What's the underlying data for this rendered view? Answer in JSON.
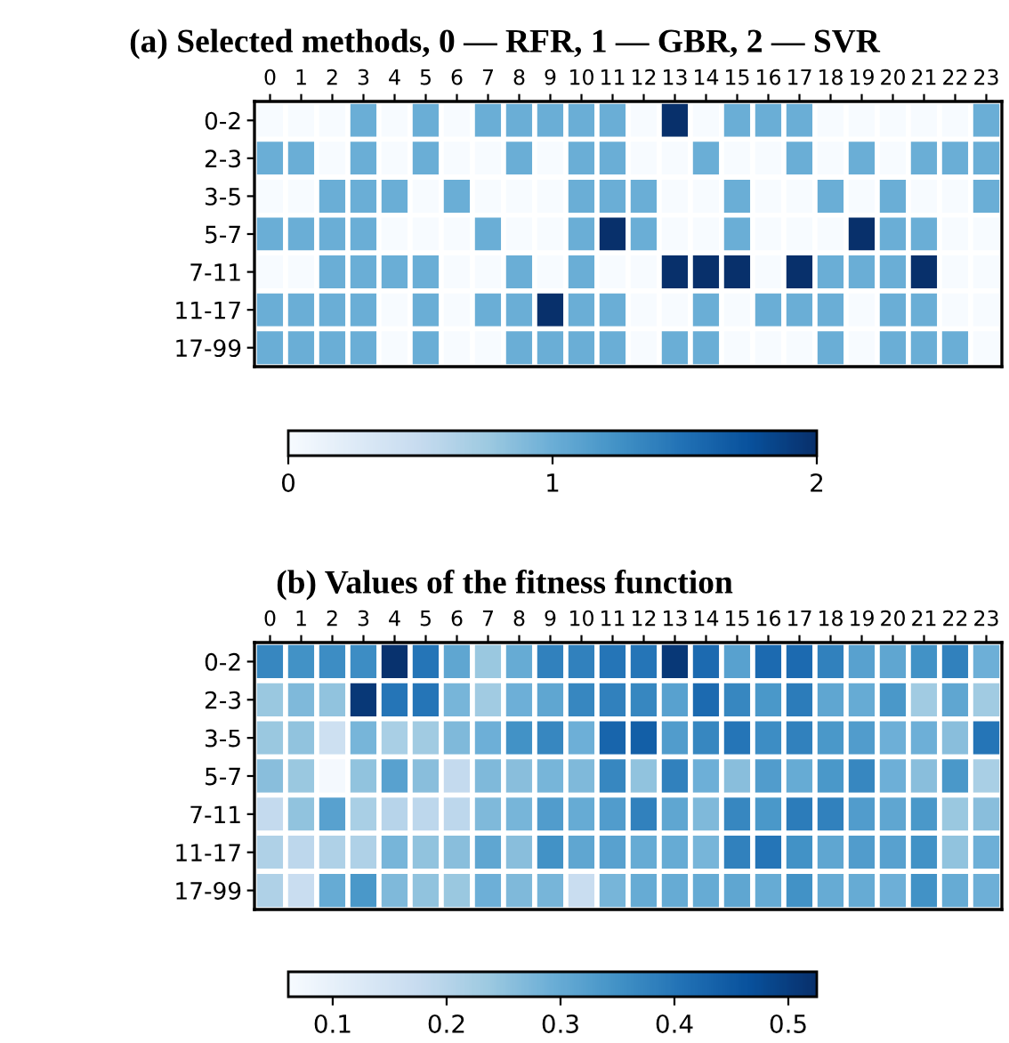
{
  "chart_data": [
    {
      "type": "heatmap",
      "title": "(a) Selected methods, 0 — RFR, 1 — GBR, 2 — SVR",
      "categories": [
        "0",
        "1",
        "2",
        "3",
        "4",
        "5",
        "6",
        "7",
        "8",
        "9",
        "10",
        "11",
        "12",
        "13",
        "14",
        "15",
        "16",
        "17",
        "18",
        "19",
        "20",
        "21",
        "22",
        "23"
      ],
      "y_categories": [
        "0-2",
        "2-3",
        "3-5",
        "5-7",
        "7-11",
        "11-17",
        "17-99"
      ],
      "cells": [
        [
          0,
          0,
          0,
          1,
          0,
          1,
          0,
          1,
          1,
          1,
          1,
          1,
          0,
          2,
          0,
          1,
          1,
          1,
          0,
          0,
          0,
          0,
          0,
          1
        ],
        [
          1,
          1,
          0,
          1,
          0,
          1,
          0,
          0,
          1,
          0,
          1,
          1,
          0,
          0,
          1,
          0,
          0,
          1,
          0,
          1,
          0,
          1,
          1,
          1
        ],
        [
          0,
          0,
          1,
          1,
          1,
          0,
          1,
          0,
          0,
          0,
          1,
          1,
          1,
          0,
          0,
          1,
          0,
          0,
          1,
          0,
          1,
          0,
          0,
          1
        ],
        [
          1,
          1,
          1,
          1,
          0,
          0,
          0,
          1,
          0,
          0,
          1,
          2,
          1,
          0,
          0,
          1,
          0,
          0,
          0,
          2,
          1,
          1,
          0,
          0
        ],
        [
          0,
          0,
          1,
          1,
          1,
          1,
          0,
          0,
          1,
          0,
          1,
          0,
          0,
          2,
          2,
          2,
          0,
          2,
          1,
          1,
          1,
          2,
          0,
          0
        ],
        [
          1,
          1,
          1,
          1,
          0,
          1,
          0,
          1,
          1,
          2,
          1,
          1,
          0,
          0,
          1,
          0,
          1,
          1,
          1,
          0,
          1,
          1,
          0,
          0
        ],
        [
          1,
          1,
          1,
          1,
          0,
          1,
          0,
          0,
          1,
          1,
          1,
          1,
          0,
          1,
          1,
          0,
          0,
          0,
          1,
          0,
          1,
          1,
          1,
          0
        ]
      ],
      "clim": [
        0,
        2
      ],
      "cticks": [
        0,
        1,
        2
      ]
    },
    {
      "type": "heatmap",
      "title": "(b) Values of the fitness function",
      "categories": [
        "0",
        "1",
        "2",
        "3",
        "4",
        "5",
        "6",
        "7",
        "8",
        "9",
        "10",
        "11",
        "12",
        "13",
        "14",
        "15",
        "16",
        "17",
        "18",
        "19",
        "20",
        "21",
        "22",
        "23"
      ],
      "y_categories": [
        "0-2",
        "2-3",
        "3-5",
        "5-7",
        "7-11",
        "11-17",
        "17-99"
      ],
      "cells": [
        [
          0.37,
          0.35,
          0.36,
          0.36,
          0.52,
          0.4,
          0.31,
          0.24,
          0.3,
          0.38,
          0.38,
          0.4,
          0.4,
          0.51,
          0.42,
          0.32,
          0.42,
          0.42,
          0.38,
          0.32,
          0.31,
          0.35,
          0.38,
          0.29
        ],
        [
          0.24,
          0.27,
          0.25,
          0.51,
          0.4,
          0.4,
          0.28,
          0.23,
          0.29,
          0.31,
          0.37,
          0.38,
          0.37,
          0.32,
          0.42,
          0.37,
          0.34,
          0.39,
          0.31,
          0.3,
          0.34,
          0.23,
          0.31,
          0.23
        ],
        [
          0.24,
          0.25,
          0.16,
          0.28,
          0.22,
          0.23,
          0.27,
          0.29,
          0.35,
          0.37,
          0.29,
          0.43,
          0.44,
          0.33,
          0.37,
          0.4,
          0.36,
          0.38,
          0.34,
          0.33,
          0.29,
          0.29,
          0.26,
          0.4
        ],
        [
          0.26,
          0.24,
          0.07,
          0.25,
          0.32,
          0.26,
          0.18,
          0.27,
          0.26,
          0.28,
          0.27,
          0.37,
          0.25,
          0.38,
          0.29,
          0.26,
          0.33,
          0.3,
          0.34,
          0.37,
          0.29,
          0.26,
          0.34,
          0.22
        ],
        [
          0.18,
          0.25,
          0.32,
          0.22,
          0.2,
          0.19,
          0.19,
          0.27,
          0.28,
          0.33,
          0.3,
          0.33,
          0.38,
          0.31,
          0.27,
          0.37,
          0.34,
          0.39,
          0.38,
          0.33,
          0.31,
          0.34,
          0.24,
          0.26
        ],
        [
          0.21,
          0.19,
          0.21,
          0.21,
          0.28,
          0.25,
          0.26,
          0.31,
          0.26,
          0.35,
          0.31,
          0.32,
          0.3,
          0.3,
          0.28,
          0.38,
          0.4,
          0.35,
          0.31,
          0.33,
          0.32,
          0.35,
          0.25,
          0.29
        ],
        [
          0.21,
          0.17,
          0.3,
          0.34,
          0.27,
          0.25,
          0.24,
          0.29,
          0.27,
          0.28,
          0.17,
          0.28,
          0.3,
          0.3,
          0.3,
          0.31,
          0.3,
          0.35,
          0.3,
          0.3,
          0.29,
          0.35,
          0.3,
          0.29
        ]
      ],
      "clim": [
        0.061,
        0.525
      ],
      "cticks": [
        0.1,
        0.2,
        0.3,
        0.4,
        0.5
      ]
    }
  ]
}
